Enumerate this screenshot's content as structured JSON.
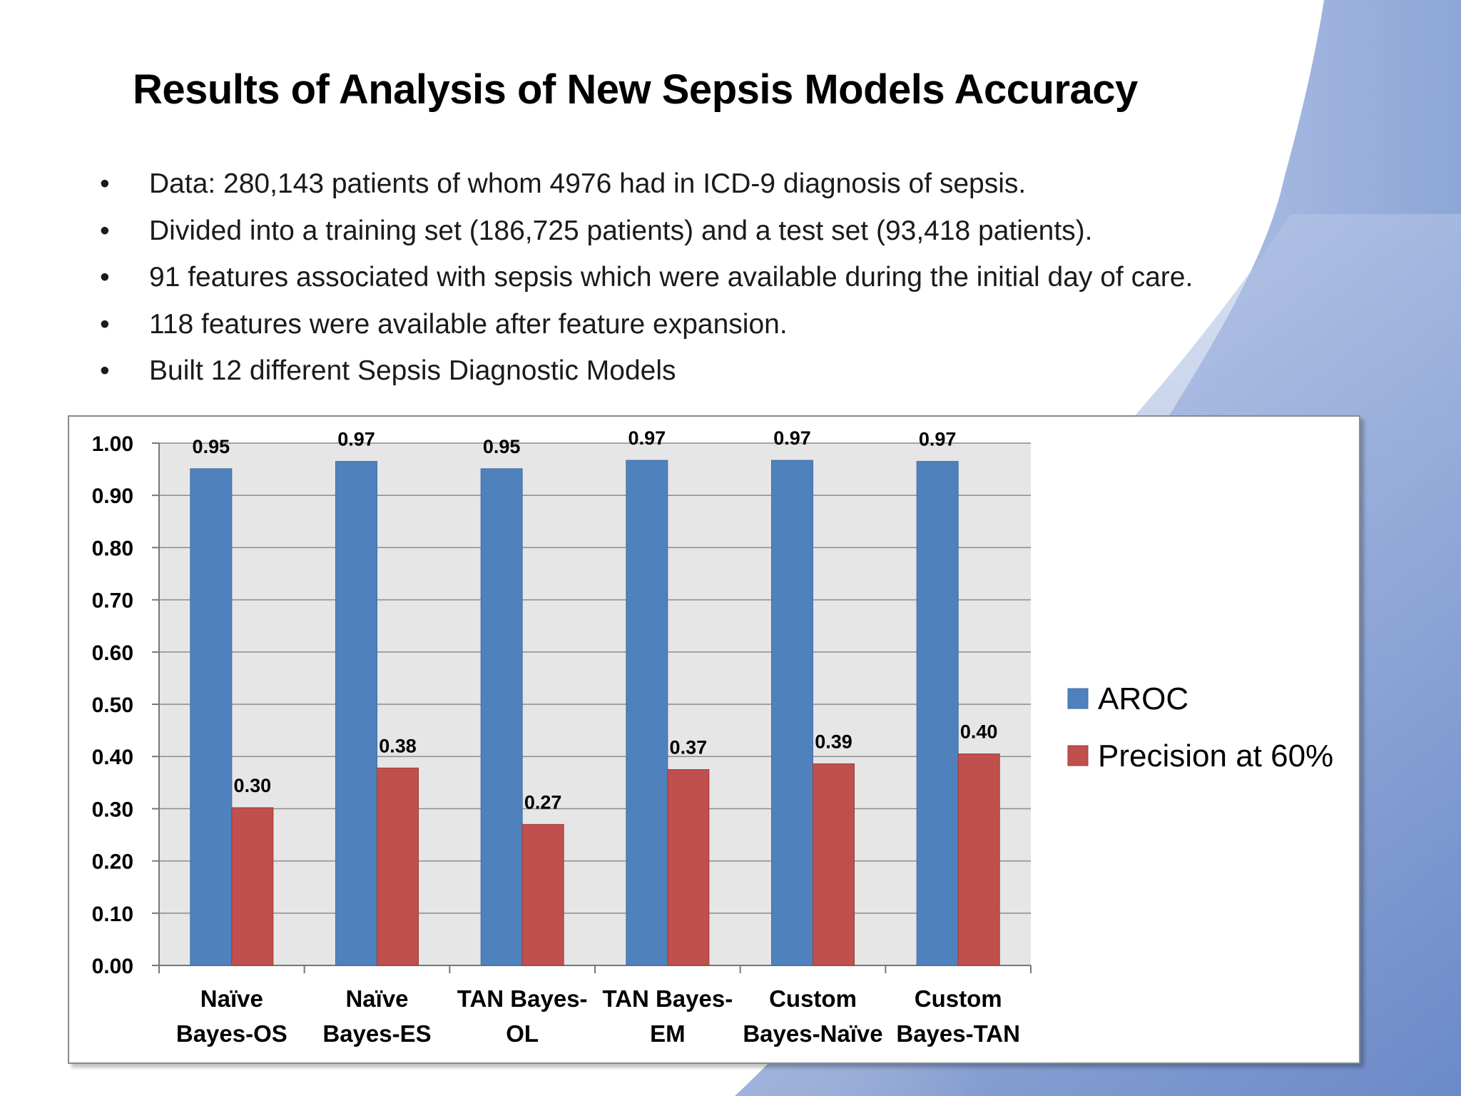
{
  "slide": {
    "title": "Results of Analysis of New Sepsis Models Accuracy",
    "bullets": [
      "Data: 280,143 patients of whom 4976 had in ICD-9 diagnosis of sepsis.",
      "Divided into a training set (186,725 patients) and a test set (93,418 patients).",
      "91 features associated with sepsis which were available during the initial day of care.",
      "118 features were available after feature expansion.",
      "Built 12 different Sepsis Diagnostic Models"
    ],
    "bullet_symbol": "•"
  },
  "colors": {
    "aroc": "#4f81bd",
    "precision": "#c0504d",
    "plot_bg": "#e6e6e6",
    "gridline": "#8c8c8c",
    "wave": "#6d8fcd"
  },
  "chart_data": {
    "type": "bar",
    "categories": [
      [
        "Naïve",
        "Bayes-OS"
      ],
      [
        "Naïve",
        "Bayes-ES"
      ],
      [
        "TAN Bayes-",
        "OL"
      ],
      [
        "TAN Bayes-",
        "EM"
      ],
      [
        "Custom",
        "Bayes-Naïve"
      ],
      [
        "Custom",
        "Bayes-TAN"
      ]
    ],
    "series": [
      {
        "name": "AROC",
        "values": [
          0.951,
          0.965,
          0.951,
          0.967,
          0.967,
          0.965
        ],
        "labels": [
          "0.95",
          "0.97",
          "0.95",
          "0.97",
          "0.97",
          "0.97"
        ]
      },
      {
        "name": "Precision at 60%",
        "values": [
          0.302,
          0.378,
          0.27,
          0.375,
          0.386,
          0.405
        ],
        "labels": [
          "0.30",
          "0.38",
          "0.27",
          "0.37",
          "0.39",
          "0.40"
        ]
      }
    ],
    "yticks": [
      "0.00",
      "0.10",
      "0.20",
      "0.30",
      "0.40",
      "0.50",
      "0.60",
      "0.70",
      "0.80",
      "0.90",
      "1.00"
    ],
    "ylim": [
      0,
      1
    ],
    "grid": true,
    "legend": "right"
  }
}
